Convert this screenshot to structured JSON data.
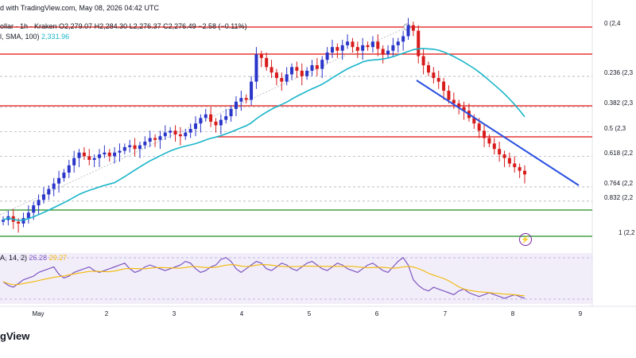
{
  "header": {
    "published": "d with TradingView.com, May 08, 2026 04:42 UTC",
    "symbol_line": "ollar · 1h · Kraken",
    "ohlc": "O2,279.07  H2,284.30  L2,276.37  C2,276.49  −2.58 (−0.11%)",
    "sma_label": "l, SMA, 100)",
    "sma_value": "2,331.96",
    "rsi_label": "A, 14, 2)",
    "rsi_value": "26.28",
    "rsi_ma_value": "29.27"
  },
  "logo": "gView",
  "colors": {
    "up": "#2a35c9",
    "down": "#d81b1b",
    "sma": "#19b5c9",
    "trend": "#2950e0",
    "resistance": "#e53935",
    "support": "#43a047",
    "rsi": "#7e57c2",
    "rsi_ma": "#f2b705"
  },
  "chart_data": {
    "type": "candlestick",
    "x_ticks": [
      "May",
      "2",
      "3",
      "4",
      "5",
      "6",
      "7",
      "8",
      "9"
    ],
    "fib_levels": [
      {
        "label": "0 (2,4",
        "ratio": 0
      },
      {
        "label": "0.236 (2,3",
        "ratio": 0.236
      },
      {
        "label": "0.382 (2,3",
        "ratio": 0.382
      },
      {
        "label": "0.5 (2,3",
        "ratio": 0.5
      },
      {
        "label": "0.618 (2,2",
        "ratio": 0.618
      },
      {
        "label": "0.764 (2,2",
        "ratio": 0.764
      },
      {
        "label": "0.832 (2,2",
        "ratio": 0.832
      },
      {
        "label": "1 (2,2",
        "ratio": 1
      }
    ],
    "horizontal_levels": [
      "resistance",
      "resistance",
      "resistance",
      "support",
      "support"
    ],
    "series": [
      {
        "name": "price",
        "close_path": [
          2228,
          2232,
          2226,
          2224,
          2230,
          2236,
          2244,
          2250,
          2256,
          2262,
          2268,
          2274,
          2280,
          2288,
          2296,
          2302,
          2298,
          2294,
          2296,
          2300,
          2302,
          2298,
          2302,
          2304,
          2308,
          2310,
          2306,
          2310,
          2314,
          2318,
          2316,
          2320,
          2324,
          2326,
          2322,
          2320,
          2324,
          2328,
          2334,
          2340,
          2344,
          2336,
          2332,
          2338,
          2342,
          2350,
          2358,
          2362,
          2360,
          2380,
          2410,
          2406,
          2396,
          2390,
          2384,
          2380,
          2388,
          2396,
          2392,
          2386,
          2392,
          2398,
          2394,
          2404,
          2412,
          2418,
          2414,
          2420,
          2424,
          2418,
          2414,
          2420,
          2418,
          2424,
          2416,
          2410,
          2414,
          2420,
          2424,
          2430,
          2442,
          2436,
          2408,
          2398,
          2390,
          2384,
          2380,
          2370,
          2360,
          2356,
          2352,
          2348,
          2340,
          2334,
          2326,
          2318,
          2312,
          2306,
          2300,
          2296,
          2290,
          2286,
          2282,
          2278
        ]
      }
    ],
    "rsi": [
      44,
      40,
      38,
      42,
      46,
      48,
      50,
      54,
      56,
      58,
      60,
      52,
      48,
      50,
      54,
      56,
      58,
      60,
      56,
      54,
      56,
      58,
      60,
      62,
      64,
      58,
      54,
      56,
      60,
      62,
      60,
      58,
      56,
      58,
      60,
      62,
      66,
      64,
      58,
      54,
      56,
      60,
      62,
      68,
      70,
      66,
      58,
      54,
      58,
      62,
      66,
      64,
      58,
      56,
      60,
      64,
      62,
      58,
      56,
      60,
      64,
      66,
      62,
      58,
      56,
      60,
      64,
      62,
      58,
      56,
      54,
      58,
      62,
      64,
      60,
      56,
      54,
      60,
      66,
      70,
      62,
      46,
      40,
      36,
      34,
      38,
      36,
      34,
      32,
      30,
      34,
      36,
      32,
      30,
      28,
      30,
      32,
      30,
      28,
      26,
      28,
      30,
      28,
      26
    ]
  }
}
